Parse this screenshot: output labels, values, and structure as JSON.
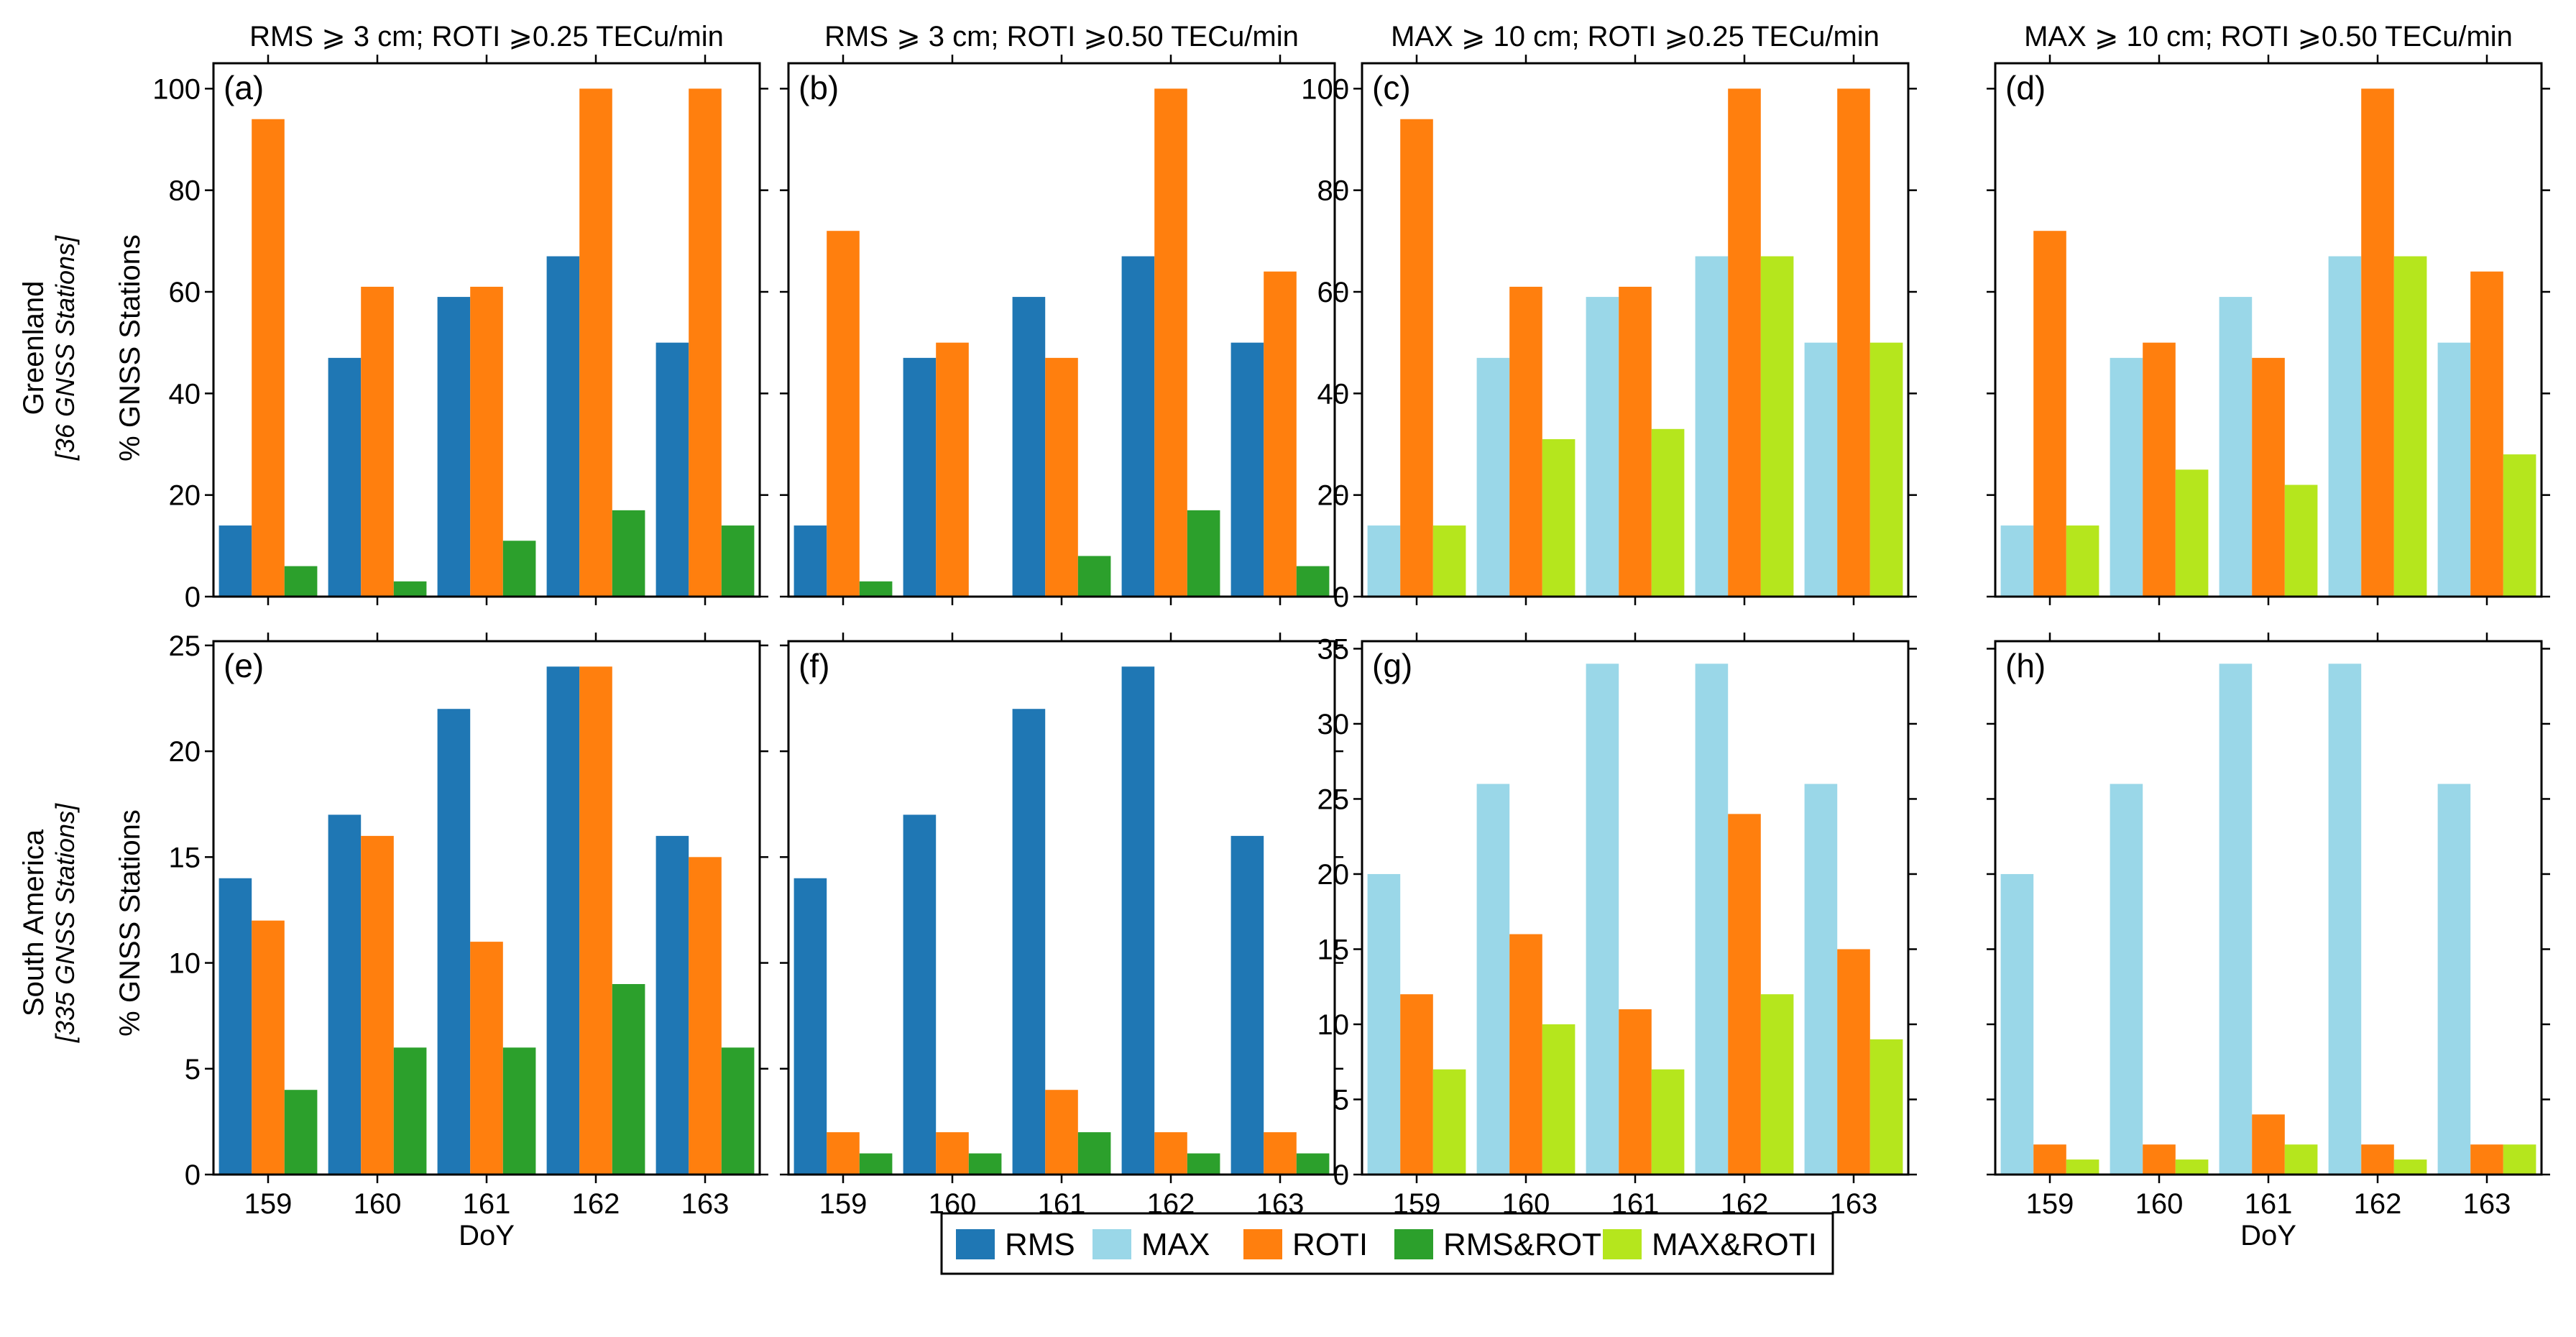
{
  "colors": {
    "RMS": "#1f77b4",
    "MAX": "#9ad7e8",
    "ROTI": "#ff7f0e",
    "RMS&ROTI": "#2ca02c",
    "MAX&ROTI": "#b5e61d"
  },
  "legend": {
    "items": [
      {
        "key": "RMS",
        "label": "RMS"
      },
      {
        "key": "MAX",
        "label": "MAX"
      },
      {
        "key": "ROTI",
        "label": "ROTI"
      },
      {
        "key": "RMS&ROTI",
        "label": "RMS&ROTI"
      },
      {
        "key": "MAX&ROTI",
        "label": "MAX&ROTI"
      }
    ]
  },
  "row_labels": [
    {
      "region": "Greenland",
      "stations": "[36 GNSS Stations]"
    },
    {
      "region": "South America",
      "stations": "[335 GNSS Stations]"
    }
  ],
  "ylabel": "% GNSS Stations",
  "chart_data": [
    {
      "panel": "(a)",
      "type": "bar",
      "title": "RMS ⩾ 3 cm; ROTI ⩾0.25 TECu/min",
      "categories": [
        "159",
        "160",
        "161",
        "162",
        "163"
      ],
      "xlabel": "DoY",
      "ylabel": "% GNSS Stations",
      "ylim": [
        0,
        105
      ],
      "yticks": [
        0,
        20,
        40,
        60,
        80,
        100
      ],
      "series": [
        {
          "name": "RMS",
          "values": [
            14,
            47,
            59,
            67,
            50
          ]
        },
        {
          "name": "ROTI",
          "values": [
            94,
            61,
            61,
            100,
            100
          ]
        },
        {
          "name": "RMS&ROTI",
          "values": [
            6,
            3,
            11,
            17,
            14
          ]
        }
      ]
    },
    {
      "panel": "(b)",
      "type": "bar",
      "title": "RMS ⩾ 3 cm; ROTI ⩾0.50 TECu/min",
      "categories": [
        "159",
        "160",
        "161",
        "162",
        "163"
      ],
      "xlabel": "DoY",
      "ylabel": "% GNSS Stations",
      "ylim": [
        0,
        105
      ],
      "yticks": [],
      "series": [
        {
          "name": "RMS",
          "values": [
            14,
            47,
            59,
            67,
            50
          ]
        },
        {
          "name": "ROTI",
          "values": [
            72,
            50,
            47,
            100,
            64
          ]
        },
        {
          "name": "RMS&ROTI",
          "values": [
            3,
            0,
            8,
            17,
            6
          ]
        }
      ]
    },
    {
      "panel": "(c)",
      "type": "bar",
      "title": "MAX ⩾ 10 cm; ROTI ⩾0.25 TECu/min",
      "categories": [
        "159",
        "160",
        "161",
        "162",
        "163"
      ],
      "xlabel": "DoY",
      "ylabel": "% GNSS Stations",
      "ylim": [
        0,
        105
      ],
      "yticks": [
        0,
        20,
        40,
        60,
        80,
        100
      ],
      "series": [
        {
          "name": "MAX",
          "values": [
            14,
            47,
            59,
            67,
            50
          ]
        },
        {
          "name": "ROTI",
          "values": [
            94,
            61,
            61,
            100,
            100
          ]
        },
        {
          "name": "MAX&ROTI",
          "values": [
            14,
            31,
            33,
            67,
            50
          ]
        }
      ]
    },
    {
      "panel": "(d)",
      "type": "bar",
      "title": "MAX ⩾ 10 cm; ROTI ⩾0.50 TECu/min",
      "categories": [
        "159",
        "160",
        "161",
        "162",
        "163"
      ],
      "xlabel": "DoY",
      "ylabel": "% GNSS Stations",
      "ylim": [
        0,
        105
      ],
      "yticks": [],
      "series": [
        {
          "name": "MAX",
          "values": [
            14,
            47,
            59,
            67,
            50
          ]
        },
        {
          "name": "ROTI",
          "values": [
            72,
            50,
            47,
            100,
            64
          ]
        },
        {
          "name": "MAX&ROTI",
          "values": [
            14,
            25,
            22,
            67,
            28
          ]
        }
      ]
    },
    {
      "panel": "(e)",
      "type": "bar",
      "title": "",
      "categories": [
        "159",
        "160",
        "161",
        "162",
        "163"
      ],
      "xlabel": "DoY",
      "ylabel": "% GNSS Stations",
      "ylim": [
        0,
        25.2
      ],
      "yticks": [
        0,
        5,
        10,
        15,
        20,
        25
      ],
      "series": [
        {
          "name": "RMS",
          "values": [
            14,
            17,
            22,
            24,
            16
          ]
        },
        {
          "name": "ROTI",
          "values": [
            12,
            16,
            11,
            24,
            15
          ]
        },
        {
          "name": "RMS&ROTI",
          "values": [
            4,
            6,
            6,
            9,
            6
          ]
        }
      ]
    },
    {
      "panel": "(f)",
      "type": "bar",
      "title": "",
      "categories": [
        "159",
        "160",
        "161",
        "162",
        "163"
      ],
      "xlabel": "DoY",
      "ylabel": "% GNSS Stations",
      "ylim": [
        0,
        25.2
      ],
      "yticks": [],
      "series": [
        {
          "name": "RMS",
          "values": [
            14,
            17,
            22,
            24,
            16
          ]
        },
        {
          "name": "ROTI",
          "values": [
            2,
            2,
            4,
            2,
            2
          ]
        },
        {
          "name": "RMS&ROTI",
          "values": [
            1,
            1,
            2,
            1,
            1
          ]
        }
      ]
    },
    {
      "panel": "(g)",
      "type": "bar",
      "title": "",
      "categories": [
        "159",
        "160",
        "161",
        "162",
        "163"
      ],
      "xlabel": "DoY",
      "ylabel": "% GNSS Stations",
      "ylim": [
        0,
        35.5
      ],
      "yticks": [
        0,
        5,
        10,
        15,
        20,
        25,
        30,
        35
      ],
      "series": [
        {
          "name": "MAX",
          "values": [
            20,
            26,
            34,
            34,
            26
          ]
        },
        {
          "name": "ROTI",
          "values": [
            12,
            16,
            11,
            24,
            15
          ]
        },
        {
          "name": "MAX&ROTI",
          "values": [
            7,
            10,
            7,
            12,
            9
          ]
        }
      ]
    },
    {
      "panel": "(h)",
      "type": "bar",
      "title": "",
      "categories": [
        "159",
        "160",
        "161",
        "162",
        "163"
      ],
      "xlabel": "DoY",
      "ylabel": "% GNSS Stations",
      "ylim": [
        0,
        35.5
      ],
      "yticks": [],
      "series": [
        {
          "name": "MAX",
          "values": [
            20,
            26,
            34,
            34,
            26
          ]
        },
        {
          "name": "ROTI",
          "values": [
            2,
            2,
            4,
            2,
            2
          ]
        },
        {
          "name": "MAX&ROTI",
          "values": [
            1,
            1,
            2,
            1,
            2
          ]
        }
      ]
    }
  ]
}
